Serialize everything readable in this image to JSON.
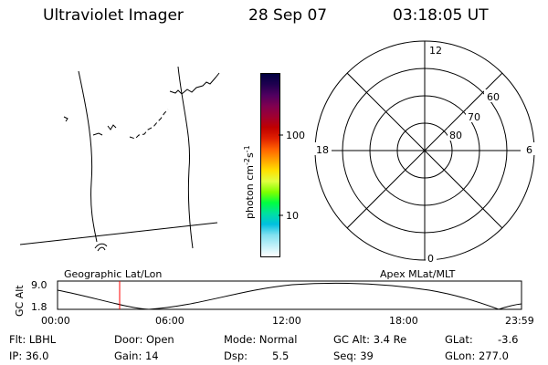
{
  "header": {
    "instrument": "Ultraviolet Imager",
    "date": "28 Sep 07",
    "time": "03:18:05 UT"
  },
  "colorbar": {
    "label_html": "photon cm<tspan baseline-shift='super' font-size='8'>-2</tspan>s<tspan baseline-shift='super' font-size='8'>-1</tspan>",
    "ticks": [
      "100",
      "10"
    ],
    "colors": [
      "#000040",
      "#200050",
      "#500060",
      "#800050",
      "#a00030",
      "#c00000",
      "#e02000",
      "#ff6000",
      "#ffa000",
      "#ffe000",
      "#e0ff40",
      "#80ff00",
      "#00ff40",
      "#00e0a0",
      "#00c0e0",
      "#80e0f0",
      "#c0f0f8",
      "#ffffff"
    ]
  },
  "polar": {
    "mlt_labels": [
      "12",
      "6",
      "0",
      "18"
    ],
    "lat_labels": [
      "60",
      "70",
      "80"
    ]
  },
  "timeline": {
    "left_label": "Geographic Lat/Lon",
    "right_label": "Apex MLat/MLT",
    "axis_title": "GC Alt",
    "y_ticks": [
      "9.0",
      "1.8"
    ],
    "x_ticks": [
      "00:00",
      "06:00",
      "12:00",
      "18:00",
      "23:59"
    ],
    "marker_color": "#ff0000"
  },
  "status": {
    "flt": "Flt: LBHL",
    "ip": "IP: 36.0",
    "door": "Door: Open",
    "gain": "Gain: 14",
    "mode": "Mode: Normal",
    "dsp_label": "Dsp:",
    "dsp_value": "5.5",
    "gcalt": "GC Alt: 3.4 Re",
    "seq": "Seq: 39",
    "glat": "GLat:",
    "glat_value": "-3.6",
    "glon": "GLon: 277.0"
  }
}
